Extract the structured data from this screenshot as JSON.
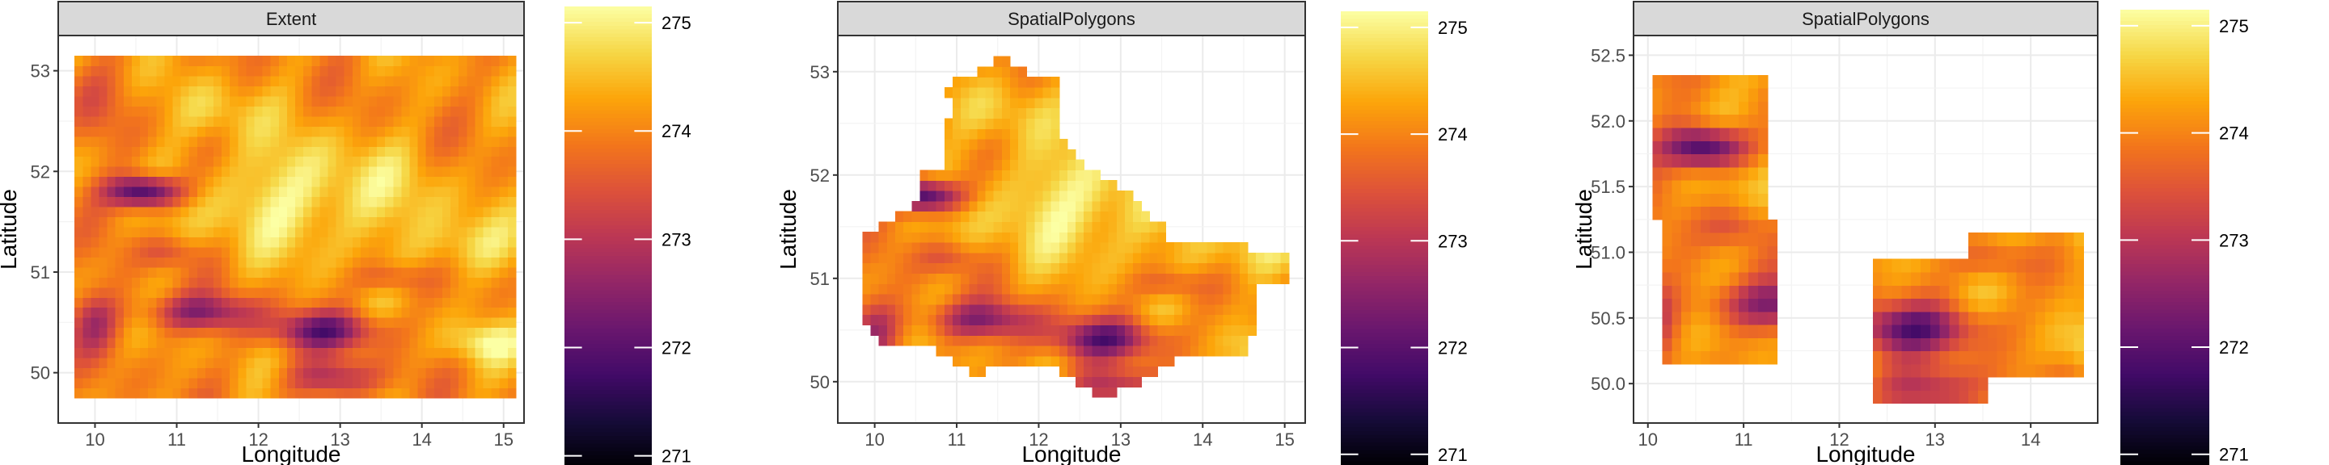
{
  "chart_data": [
    {
      "type": "heatmap",
      "title": "Extent",
      "xlabel": "Longitude",
      "ylabel": "Latitude",
      "xlim": [
        9.55,
        15.25
      ],
      "ylim": [
        49.5,
        53.35
      ],
      "x_ticks": [
        10,
        11,
        12,
        13,
        14,
        15
      ],
      "x_tick_labels": [
        "10",
        "11",
        "12",
        "13",
        "14",
        "15"
      ],
      "y_ticks": [
        50,
        51,
        52,
        53
      ],
      "y_tick_labels": [
        "50",
        "51",
        "52",
        "53"
      ],
      "grid": true,
      "raster": {
        "x_range": [
          9.75,
          15.1
        ],
        "y_range": [
          49.75,
          53.15
        ]
      },
      "mask": "full-extent",
      "colorbar": {
        "min": 270.9,
        "max": 275.15,
        "ticks": [
          271,
          272,
          273,
          274,
          275
        ],
        "tick_labels": [
          "271",
          "272",
          "273",
          "274",
          "275"
        ],
        "palette": "inferno"
      }
    },
    {
      "type": "heatmap",
      "title": "SpatialPolygons",
      "xlabel": "Longitude",
      "ylabel": "Latitude",
      "xlim": [
        9.55,
        15.25
      ],
      "ylim": [
        49.6,
        53.35
      ],
      "x_ticks": [
        10,
        11,
        12,
        13,
        14,
        15
      ],
      "x_tick_labels": [
        "10",
        "11",
        "12",
        "13",
        "14",
        "15"
      ],
      "y_ticks": [
        50,
        51,
        52,
        53
      ],
      "y_tick_labels": [
        "50",
        "51",
        "52",
        "53"
      ],
      "grid": true,
      "raster": {
        "x_range": [
          9.75,
          15.1
        ],
        "y_range": [
          49.75,
          53.15
        ]
      },
      "mask": "region-outline",
      "colorbar": {
        "min": 270.9,
        "max": 275.15,
        "ticks": [
          271,
          272,
          273,
          274,
          275
        ],
        "tick_labels": [
          "271",
          "272",
          "273",
          "274",
          "275"
        ],
        "palette": "inferno"
      }
    },
    {
      "type": "heatmap",
      "title": "SpatialPolygons",
      "xlabel": "Longitude",
      "ylabel": "Latitude",
      "xlim": [
        9.85,
        14.7
      ],
      "ylim": [
        49.7,
        52.65
      ],
      "x_ticks": [
        10,
        11,
        12,
        13,
        14
      ],
      "x_tick_labels": [
        "10",
        "11",
        "12",
        "13",
        "14"
      ],
      "y_ticks": [
        50.0,
        50.5,
        51.0,
        51.5,
        52.0,
        52.5
      ],
      "y_tick_labels": [
        "50.0",
        "50.5",
        "51.0",
        "51.5",
        "52.0",
        "52.5"
      ],
      "grid": true,
      "raster": {
        "x_range": [
          9.75,
          15.1
        ],
        "y_range": [
          49.75,
          53.15
        ]
      },
      "mask": "two-patches",
      "colorbar": {
        "min": 270.9,
        "max": 275.15,
        "ticks": [
          271,
          272,
          273,
          274,
          275
        ],
        "tick_labels": [
          "271",
          "272",
          "273",
          "274",
          "275"
        ],
        "palette": "inferno"
      }
    }
  ]
}
